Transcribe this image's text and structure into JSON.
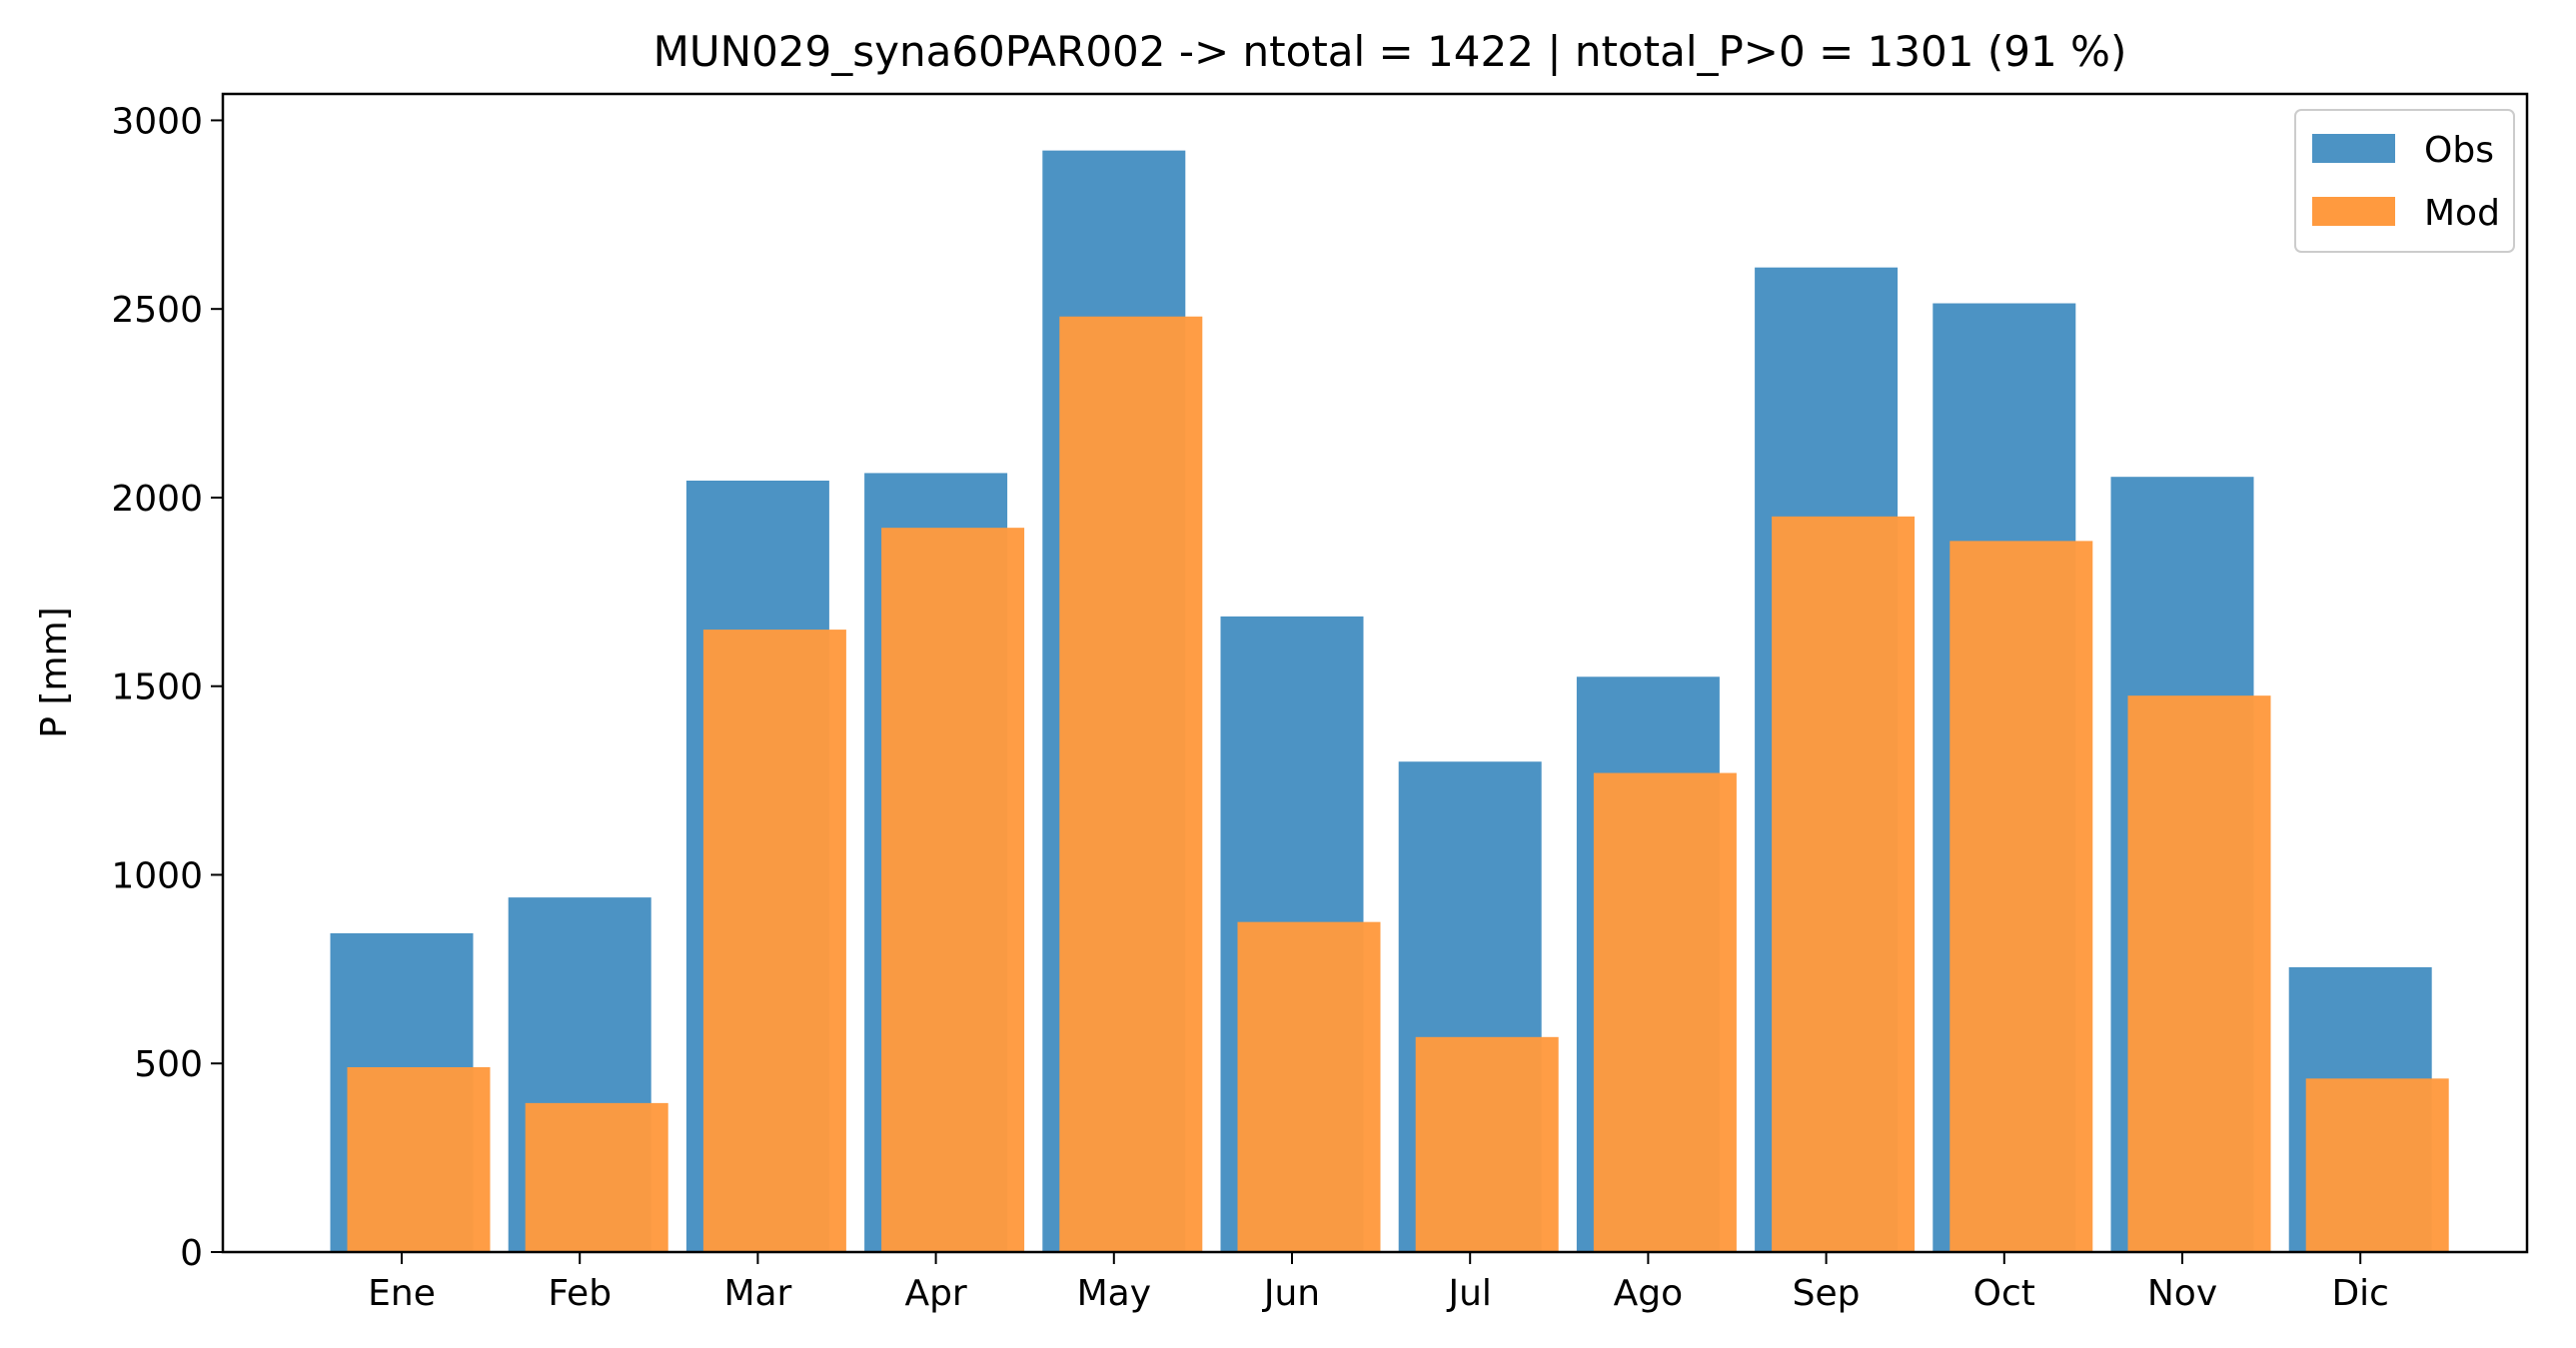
{
  "chart_data": {
    "type": "bar",
    "title": "MUN029_syna60PAR002 -> ntotal = 1422 | ntotal_P>0 = 1301 (91 %)",
    "xlabel": "",
    "ylabel": "P [mm]",
    "ylim": [
      0,
      3070
    ],
    "yticks": [
      0,
      500,
      1000,
      1500,
      2000,
      2500,
      3000
    ],
    "grid": false,
    "legend_position": "top-right",
    "categories": [
      "Ene",
      "Feb",
      "Mar",
      "Apr",
      "May",
      "Jun",
      "Jul",
      "Ago",
      "Sep",
      "Oct",
      "Nov",
      "Dic"
    ],
    "series": [
      {
        "name": "Obs",
        "color": "#4c93c4",
        "values": [
          845,
          940,
          2045,
          2065,
          2920,
          1685,
          1300,
          1525,
          2610,
          2515,
          2055,
          755
        ]
      },
      {
        "name": "Mod",
        "color": "#ff9a3f",
        "values": [
          490,
          395,
          1650,
          1920,
          2480,
          875,
          570,
          1270,
          1950,
          1885,
          1475,
          460
        ]
      }
    ]
  }
}
